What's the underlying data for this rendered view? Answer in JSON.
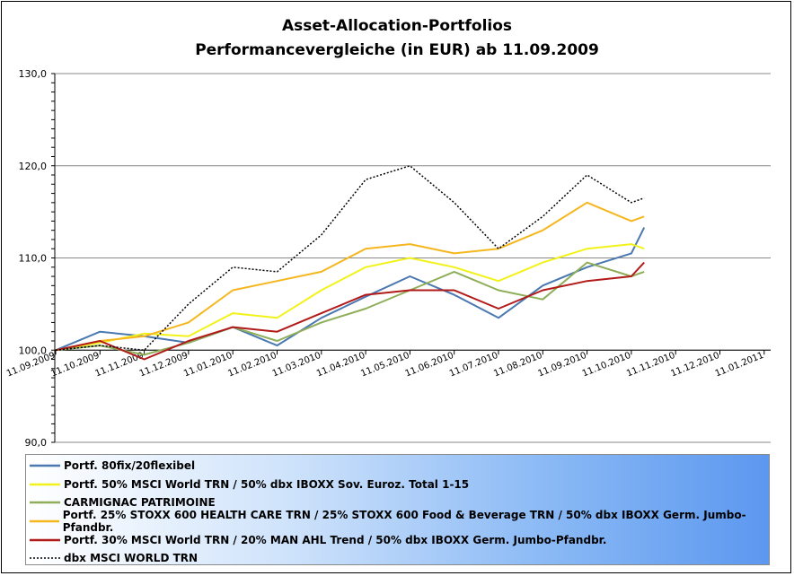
{
  "chart_data": {
    "type": "line",
    "title": "Asset-Allocation-Portfolios",
    "subtitle": "Performancevergleiche (in EUR) ab 11.09.2009",
    "xlabel": "",
    "ylabel": "",
    "ylim": [
      90,
      130
    ],
    "y_ticks": [
      "90,0",
      "100,0",
      "110,0",
      "120,0",
      "130,0"
    ],
    "x_ticks": [
      "11.09.2009",
      "11.10.2009",
      "11.11.2009",
      "11.12.2009",
      "11.01.2010",
      "11.02.2010",
      "11.03.2010",
      "11.04.2010",
      "11.05.2010",
      "11.06.2010",
      "11.07.2010",
      "11.08.2010",
      "11.09.2010",
      "11.10.2010",
      "11.11.2010",
      "11.12.2010",
      "11.01.2011"
    ],
    "grid": "horizontal at labelled ticks",
    "legend_position": "bottom",
    "series": [
      {
        "name": "Portf. 80fix/20flexibel",
        "color": "#4a78b0",
        "dash": "solid",
        "x": [
          "11.09.2009",
          "11.10.2009",
          "11.11.2009",
          "11.12.2009",
          "11.01.2010",
          "11.02.2010",
          "11.03.2010",
          "11.04.2010",
          "11.05.2010",
          "11.06.2010",
          "11.07.2010",
          "11.08.2010",
          "11.09.2010",
          "11.10.2010",
          "20.10.2010"
        ],
        "values": [
          100.0,
          102.0,
          101.5,
          100.8,
          102.5,
          100.5,
          103.5,
          105.8,
          108.0,
          106.0,
          103.5,
          107.0,
          109.0,
          110.5,
          113.3
        ]
      },
      {
        "name": "Portf. 50% MSCI World TRN / 50% dbx IBOXX Sov. Euroz. Total 1-15",
        "color": "#f2f21a",
        "dash": "solid",
        "x": [
          "11.09.2009",
          "11.10.2009",
          "11.11.2009",
          "11.12.2009",
          "11.01.2010",
          "11.02.2010",
          "11.03.2010",
          "11.04.2010",
          "11.05.2010",
          "11.06.2010",
          "11.07.2010",
          "11.08.2010",
          "11.09.2010",
          "11.10.2010",
          "20.10.2010"
        ],
        "values": [
          100.0,
          100.8,
          101.8,
          101.5,
          104.0,
          103.5,
          106.5,
          109.0,
          110.0,
          109.0,
          107.5,
          109.5,
          111.0,
          111.5,
          111.0
        ]
      },
      {
        "name": "CARMIGNAC PATRIMOINE",
        "color": "#8fae5a",
        "dash": "solid",
        "x": [
          "11.09.2009",
          "11.10.2009",
          "11.11.2009",
          "11.12.2009",
          "11.01.2010",
          "11.02.2010",
          "11.03.2010",
          "11.04.2010",
          "11.05.2010",
          "11.06.2010",
          "11.07.2010",
          "11.08.2010",
          "11.09.2010",
          "11.10.2010",
          "20.10.2010"
        ],
        "values": [
          100.0,
          100.5,
          99.5,
          100.8,
          102.5,
          101.0,
          103.0,
          104.5,
          106.5,
          108.5,
          106.5,
          105.5,
          109.5,
          108.0,
          108.5
        ]
      },
      {
        "name": "Portf. 25% STOXX 600  HEALTH CARE TRN / 25% STOXX 600  Food & Beverage TRN / 50% dbx IBOXX Germ. Jumbo-Pfandbr.",
        "color": "#f5b61e",
        "dash": "solid",
        "x": [
          "11.09.2009",
          "11.10.2009",
          "11.11.2009",
          "11.12.2009",
          "11.01.2010",
          "11.02.2010",
          "11.03.2010",
          "11.04.2010",
          "11.05.2010",
          "11.06.2010",
          "11.07.2010",
          "11.08.2010",
          "11.09.2010",
          "11.10.2010",
          "20.10.2010"
        ],
        "values": [
          100.0,
          101.0,
          101.5,
          103.0,
          106.5,
          107.5,
          108.5,
          111.0,
          111.5,
          110.5,
          111.0,
          113.0,
          116.0,
          114.0,
          114.5
        ]
      },
      {
        "name": "Portf. 30% MSCI World TRN / 20% MAN AHL Trend / 50% dbx IBOXX Germ. Jumbo-Pfandbr.",
        "color": "#b21a1a",
        "dash": "solid",
        "x": [
          "11.09.2009",
          "11.10.2009",
          "11.11.2009",
          "11.12.2009",
          "11.01.2010",
          "11.02.2010",
          "11.03.2010",
          "11.04.2010",
          "11.05.2010",
          "11.06.2010",
          "11.07.2010",
          "11.08.2010",
          "11.09.2010",
          "11.10.2010",
          "20.10.2010"
        ],
        "values": [
          100.0,
          101.0,
          99.0,
          101.0,
          102.5,
          102.0,
          104.0,
          106.0,
          106.5,
          106.5,
          104.5,
          106.5,
          107.5,
          108.0,
          109.5
        ]
      },
      {
        "name": "dbx MSCI WORLD TRN",
        "color": "#000000",
        "dash": "dotted",
        "x": [
          "11.09.2009",
          "11.10.2009",
          "11.11.2009",
          "11.12.2009",
          "11.01.2010",
          "11.02.2010",
          "11.03.2010",
          "11.04.2010",
          "11.05.2010",
          "11.06.2010",
          "11.07.2010",
          "11.08.2010",
          "11.09.2010",
          "11.10.2010",
          "20.10.2010"
        ],
        "values": [
          100.0,
          100.5,
          100.0,
          105.0,
          109.0,
          108.5,
          112.5,
          118.5,
          120.0,
          116.0,
          111.0,
          114.5,
          119.0,
          116.0,
          116.5
        ]
      }
    ]
  }
}
